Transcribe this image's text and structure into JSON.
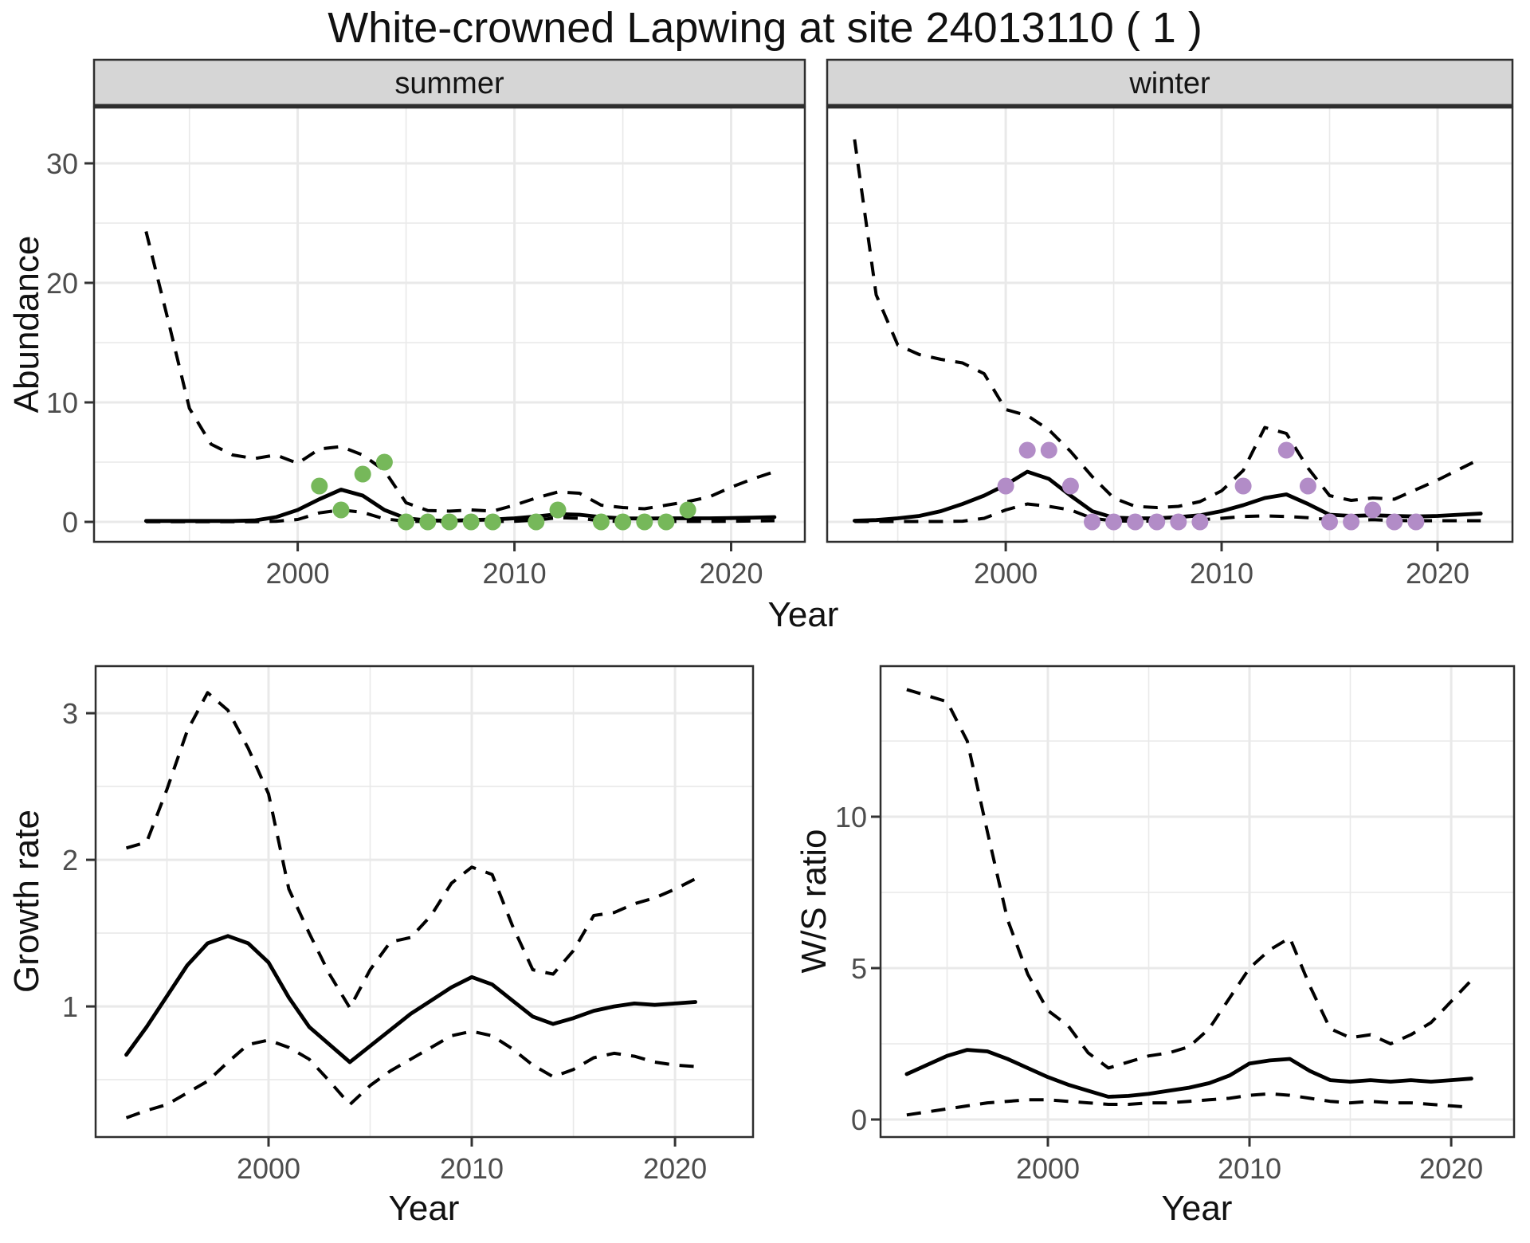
{
  "title": "White-crowned Lapwing at site 24013110 ( 1 )",
  "axes": {
    "abundance_ylabel": "Abundance",
    "top_xlabel": "Year",
    "growth_ylabel": "Growth rate",
    "growth_xlabel": "Year",
    "ratio_ylabel": "W/S ratio",
    "ratio_xlabel": "Year"
  },
  "colors": {
    "line": "#000000",
    "summer_points": "#76b85a",
    "winter_points": "#b28cc7",
    "strip_bg": "#d6d6d6",
    "panel_border": "#2e2e2e",
    "grid": "#e9e9e9",
    "tick": "#333333",
    "tick_text": "#4d4d4d"
  },
  "chart_data": {
    "type": "line",
    "description": "Faceted population model: solid = fitted abundance, dashed = 95% CI, dots = observed counts",
    "panels": [
      {
        "id": "abundance-summer",
        "facet": "summer",
        "xlim": [
          1990.6,
          2023.4
        ],
        "ylim": [
          -1.67,
          34.67
        ],
        "x_ticks": [
          2000,
          2010,
          2020
        ],
        "x_minor": [
          1995,
          2005,
          2015
        ],
        "y_ticks": [
          0,
          10,
          20,
          30
        ],
        "y_minor": [
          5,
          15,
          25
        ],
        "years": [
          1993,
          1994,
          1995,
          1996,
          1997,
          1998,
          1999,
          2000,
          2001,
          2002,
          2003,
          2004,
          2005,
          2006,
          2007,
          2008,
          2009,
          2010,
          2011,
          2012,
          2013,
          2014,
          2015,
          2016,
          2017,
          2018,
          2019,
          2020,
          2021,
          2022
        ],
        "fit": [
          0.08,
          0.08,
          0.08,
          0.08,
          0.08,
          0.12,
          0.4,
          1.0,
          1.9,
          2.7,
          2.2,
          1.0,
          0.3,
          0.12,
          0.1,
          0.15,
          0.2,
          0.3,
          0.45,
          0.65,
          0.6,
          0.4,
          0.3,
          0.28,
          0.3,
          0.3,
          0.3,
          0.32,
          0.35,
          0.4
        ],
        "ci_upper": [
          24.3,
          17.0,
          9.5,
          6.5,
          5.6,
          5.3,
          5.6,
          4.9,
          6.1,
          6.3,
          5.6,
          4.3,
          1.6,
          0.95,
          0.9,
          1.0,
          0.9,
          1.4,
          2.0,
          2.5,
          2.4,
          1.4,
          1.2,
          1.1,
          1.4,
          1.7,
          2.1,
          2.9,
          3.6,
          4.2
        ],
        "ci_lower": [
          0.02,
          0.02,
          0.02,
          0.02,
          0.02,
          0.02,
          0.05,
          0.2,
          0.75,
          1.0,
          0.8,
          0.25,
          0.05,
          0.03,
          0.03,
          0.03,
          0.03,
          0.05,
          0.15,
          0.35,
          0.3,
          0.08,
          0.04,
          0.04,
          0.04,
          0.04,
          0.04,
          0.05,
          0.08,
          0.1
        ],
        "points": {
          "color": "#76b85a",
          "years": [
            2001,
            2002,
            2003,
            2004,
            2005,
            2006,
            2007,
            2008,
            2009,
            2011,
            2012,
            2014,
            2015,
            2016,
            2017,
            2018
          ],
          "values": [
            3,
            1,
            4,
            5,
            0,
            0,
            0,
            0,
            0,
            0,
            1,
            0,
            0,
            0,
            0,
            1
          ]
        }
      },
      {
        "id": "abundance-winter",
        "facet": "winter",
        "xlim": [
          1991.73,
          2023.47
        ],
        "ylim": [
          -1.67,
          34.67
        ],
        "x_ticks": [
          2000,
          2010,
          2020
        ],
        "x_minor": [
          1995,
          2005,
          2015
        ],
        "y_ticks": [
          0,
          10,
          20,
          30
        ],
        "y_minor": [
          5,
          15,
          25
        ],
        "years": [
          1993,
          1994,
          1995,
          1996,
          1997,
          1998,
          1999,
          2000,
          2001,
          2002,
          2003,
          2004,
          2005,
          2006,
          2007,
          2008,
          2009,
          2010,
          2011,
          2012,
          2013,
          2014,
          2015,
          2016,
          2017,
          2018,
          2019,
          2020,
          2021,
          2022
        ],
        "fit": [
          0.1,
          0.15,
          0.3,
          0.5,
          0.9,
          1.5,
          2.2,
          3.1,
          4.2,
          3.6,
          2.2,
          0.9,
          0.35,
          0.3,
          0.3,
          0.4,
          0.55,
          0.9,
          1.4,
          2.0,
          2.3,
          1.5,
          0.6,
          0.5,
          0.55,
          0.5,
          0.45,
          0.5,
          0.6,
          0.7
        ],
        "ci_upper": [
          32.0,
          19.0,
          14.8,
          14.0,
          13.6,
          13.3,
          12.4,
          9.4,
          8.9,
          7.7,
          5.9,
          3.8,
          2.0,
          1.3,
          1.2,
          1.3,
          1.7,
          2.6,
          4.3,
          7.9,
          7.4,
          4.5,
          2.2,
          1.8,
          2.0,
          1.9,
          2.7,
          3.5,
          4.4,
          5.3
        ],
        "ci_lower": [
          0.03,
          0.03,
          0.03,
          0.03,
          0.03,
          0.06,
          0.3,
          1.0,
          1.5,
          1.3,
          1.0,
          0.3,
          0.08,
          0.06,
          0.08,
          0.12,
          0.18,
          0.3,
          0.45,
          0.5,
          0.45,
          0.35,
          0.18,
          0.12,
          0.18,
          0.12,
          0.1,
          0.1,
          0.1,
          0.1
        ],
        "points": {
          "color": "#b28cc7",
          "years": [
            2000,
            2001,
            2002,
            2003,
            2004,
            2005,
            2006,
            2007,
            2008,
            2009,
            2011,
            2013,
            2014,
            2015,
            2016,
            2017,
            2018,
            2019
          ],
          "values": [
            3,
            6,
            6,
            3,
            0,
            0,
            0,
            0,
            0,
            0,
            3,
            6,
            3,
            0,
            0,
            1,
            0,
            0
          ]
        }
      },
      {
        "id": "growth",
        "facet": null,
        "xlim": [
          1991.49,
          2023.84
        ],
        "ylim": [
          0.109,
          3.321
        ],
        "x_ticks": [
          2000,
          2010,
          2020
        ],
        "x_minor": [
          1995,
          2005,
          2015
        ],
        "y_ticks": [
          1,
          2,
          3
        ],
        "y_minor": [
          0.5,
          1.5,
          2.5
        ],
        "years": [
          1993,
          1994,
          1995,
          1996,
          1997,
          1998,
          1999,
          2000,
          2001,
          2002,
          2003,
          2004,
          2005,
          2006,
          2007,
          2008,
          2009,
          2010,
          2011,
          2012,
          2013,
          2014,
          2015,
          2016,
          2017,
          2018,
          2019,
          2020,
          2021
        ],
        "fit": [
          0.67,
          0.86,
          1.07,
          1.28,
          1.43,
          1.48,
          1.43,
          1.3,
          1.06,
          0.86,
          0.74,
          0.62,
          0.73,
          0.84,
          0.95,
          1.04,
          1.13,
          1.2,
          1.15,
          1.04,
          0.93,
          0.88,
          0.92,
          0.97,
          1.0,
          1.02,
          1.01,
          1.02,
          1.03
        ],
        "ci_upper": [
          2.08,
          2.12,
          2.48,
          2.88,
          3.14,
          3.02,
          2.76,
          2.45,
          1.8,
          1.5,
          1.22,
          0.99,
          1.25,
          1.44,
          1.47,
          1.62,
          1.84,
          1.95,
          1.9,
          1.55,
          1.25,
          1.22,
          1.38,
          1.62,
          1.64,
          1.7,
          1.74,
          1.8,
          1.87
        ],
        "ci_lower": [
          0.24,
          0.29,
          0.33,
          0.41,
          0.49,
          0.62,
          0.74,
          0.77,
          0.72,
          0.64,
          0.49,
          0.33,
          0.46,
          0.56,
          0.64,
          0.72,
          0.8,
          0.83,
          0.8,
          0.71,
          0.6,
          0.52,
          0.57,
          0.65,
          0.68,
          0.66,
          0.62,
          0.6,
          0.59
        ],
        "points": null
      },
      {
        "id": "ratio",
        "facet": null,
        "xlim": [
          1991.7,
          2023.12
        ],
        "ylim": [
          -0.579,
          14.974
        ],
        "x_ticks": [
          2000,
          2010,
          2020
        ],
        "x_minor": [
          1995,
          2005,
          2015
        ],
        "y_ticks": [
          0,
          5,
          10
        ],
        "y_minor": [
          2.5,
          7.5,
          12.5
        ],
        "years": [
          1993,
          1994,
          1995,
          1996,
          1997,
          1998,
          1999,
          2000,
          2001,
          2002,
          2003,
          2004,
          2005,
          2006,
          2007,
          2008,
          2009,
          2010,
          2011,
          2012,
          2013,
          2014,
          2015,
          2016,
          2017,
          2018,
          2019,
          2020,
          2021
        ],
        "fit": [
          1.5,
          1.8,
          2.1,
          2.3,
          2.25,
          2.0,
          1.7,
          1.4,
          1.15,
          0.95,
          0.75,
          0.78,
          0.85,
          0.95,
          1.05,
          1.2,
          1.45,
          1.85,
          1.95,
          2.0,
          1.6,
          1.3,
          1.25,
          1.3,
          1.25,
          1.3,
          1.25,
          1.3,
          1.35
        ],
        "ci_upper": [
          14.2,
          14.0,
          13.8,
          12.5,
          9.5,
          6.6,
          4.8,
          3.6,
          3.1,
          2.2,
          1.7,
          1.9,
          2.1,
          2.2,
          2.4,
          3.0,
          4.0,
          5.0,
          5.6,
          6.0,
          4.4,
          3.0,
          2.7,
          2.8,
          2.5,
          2.8,
          3.2,
          3.9,
          4.6
        ],
        "ci_lower": [
          0.15,
          0.25,
          0.35,
          0.45,
          0.55,
          0.6,
          0.65,
          0.65,
          0.6,
          0.55,
          0.5,
          0.5,
          0.55,
          0.55,
          0.6,
          0.65,
          0.7,
          0.8,
          0.85,
          0.8,
          0.7,
          0.6,
          0.55,
          0.6,
          0.55,
          0.55,
          0.5,
          0.45,
          0.4
        ],
        "points": null
      }
    ]
  }
}
